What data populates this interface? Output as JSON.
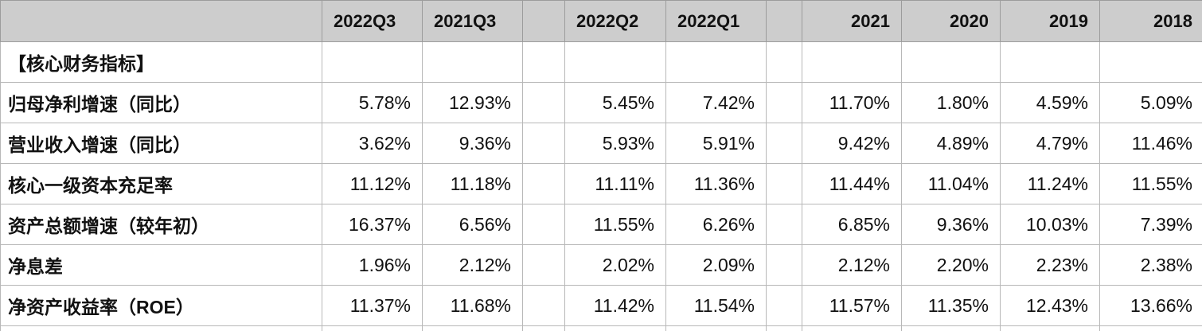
{
  "table": {
    "columns": [
      "",
      "2022Q3",
      "2021Q3",
      "",
      "2022Q2",
      "2022Q1",
      "",
      "2021",
      "2020",
      "2019",
      "2018"
    ],
    "header_align": [
      "left",
      "left",
      "left",
      "left",
      "left",
      "left",
      "left",
      "right",
      "right",
      "right",
      "right"
    ],
    "rows": [
      {
        "label": "【核心财务指标】",
        "cells": [
          "",
          "",
          "",
          "",
          "",
          "",
          "",
          "",
          "",
          ""
        ]
      },
      {
        "label": "归母净利增速（同比）",
        "cells": [
          "5.78%",
          "12.93%",
          "",
          "5.45%",
          "7.42%",
          "",
          "11.70%",
          "1.80%",
          "4.59%",
          "5.09%"
        ]
      },
      {
        "label": "营业收入增速（同比）",
        "cells": [
          "3.62%",
          "9.36%",
          "",
          "5.93%",
          "5.91%",
          "",
          "9.42%",
          "4.89%",
          "4.79%",
          "11.46%"
        ]
      },
      {
        "label": "核心一级资本充足率",
        "cells": [
          "11.12%",
          "11.18%",
          "",
          "11.11%",
          "11.36%",
          "",
          "11.44%",
          "11.04%",
          "11.24%",
          "11.55%"
        ]
      },
      {
        "label": "资产总额增速（较年初）",
        "cells": [
          "16.37%",
          "6.56%",
          "",
          "11.55%",
          "6.26%",
          "",
          "6.85%",
          "9.36%",
          "10.03%",
          "7.39%"
        ]
      },
      {
        "label": "净息差",
        "cells": [
          "1.96%",
          "2.12%",
          "",
          "2.02%",
          "2.09%",
          "",
          "2.12%",
          "2.20%",
          "2.23%",
          "2.38%"
        ]
      },
      {
        "label": "净资产收益率（ROE）",
        "cells": [
          "11.37%",
          "11.68%",
          "",
          "11.42%",
          "11.54%",
          "",
          "11.57%",
          "11.35%",
          "12.43%",
          "13.66%"
        ]
      }
    ]
  }
}
